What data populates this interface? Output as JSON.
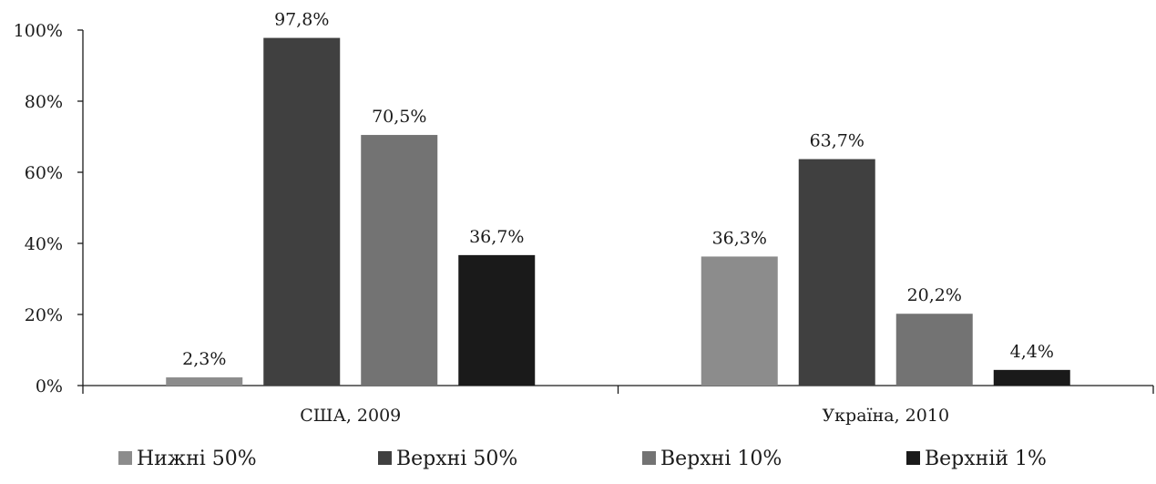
{
  "chart_data": {
    "type": "bar",
    "categories": [
      "США, 2009",
      "Україна, 2010"
    ],
    "series": [
      {
        "name": "Нижні 50%",
        "color": "#8c8c8c",
        "values": [
          2.3,
          36.3
        ],
        "labels": [
          "2,3%",
          "36,3%"
        ]
      },
      {
        "name": "Верхні 50%",
        "color": "#404040",
        "values": [
          97.8,
          63.7
        ],
        "labels": [
          "97,8%",
          "63,7%"
        ]
      },
      {
        "name": "Верхні 10%",
        "color": "#737373",
        "values": [
          70.5,
          20.2
        ],
        "labels": [
          "70,5%",
          "20,2%"
        ]
      },
      {
        "name": "Верхній 1%",
        "color": "#1a1a1a",
        "values": [
          36.7,
          4.4
        ],
        "labels": [
          "36,7%",
          "4,4%"
        ]
      }
    ],
    "ylim": [
      0,
      100
    ],
    "yticks": [
      0,
      20,
      40,
      60,
      80,
      100
    ],
    "ytick_labels": [
      "0%",
      "20%",
      "40%",
      "60%",
      "80%",
      "100%"
    ],
    "grid": false,
    "legend_position": "bottom"
  }
}
